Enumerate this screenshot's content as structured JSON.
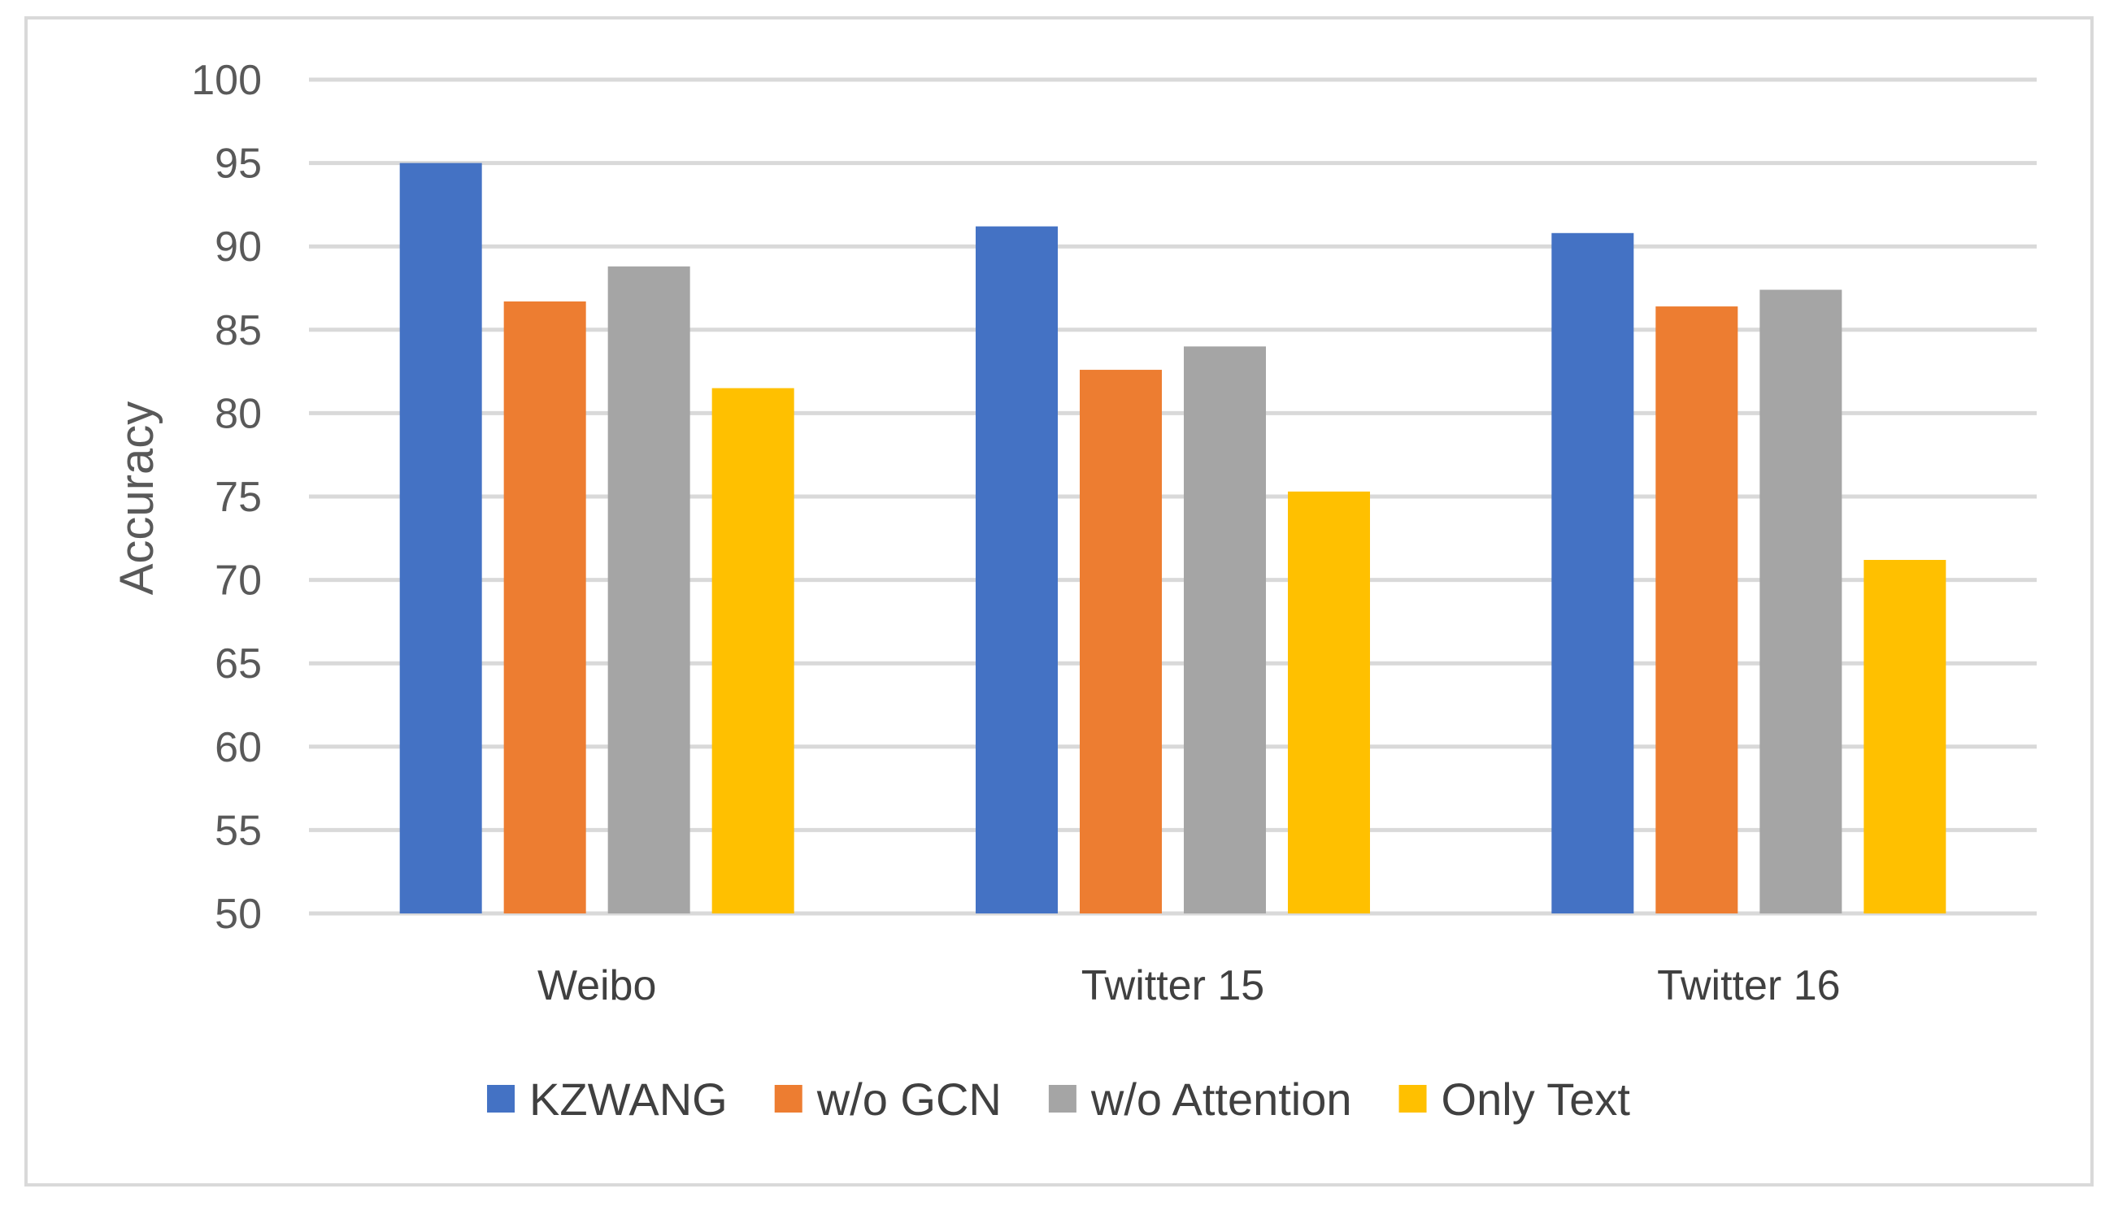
{
  "chart_data": {
    "type": "bar",
    "title": "",
    "xlabel": "",
    "ylabel": "Accuracy",
    "ylim": [
      50,
      100
    ],
    "yticks": [
      50,
      55,
      60,
      65,
      70,
      75,
      80,
      85,
      90,
      95,
      100
    ],
    "grid": true,
    "legend_position": "bottom",
    "categories": [
      "Weibo",
      "Twitter 15",
      "Twitter 16"
    ],
    "series": [
      {
        "name": "KZWANG",
        "color": "#4472C4",
        "values": [
          95.0,
          91.2,
          90.8
        ]
      },
      {
        "name": "w/o GCN",
        "color": "#ED7D31",
        "values": [
          86.7,
          82.6,
          86.4
        ]
      },
      {
        "name": "w/o Attention",
        "color": "#A5A5A5",
        "values": [
          88.8,
          84.0,
          87.4
        ]
      },
      {
        "name": "Only Text",
        "color": "#FFC000",
        "values": [
          81.5,
          75.3,
          71.2
        ]
      }
    ]
  }
}
